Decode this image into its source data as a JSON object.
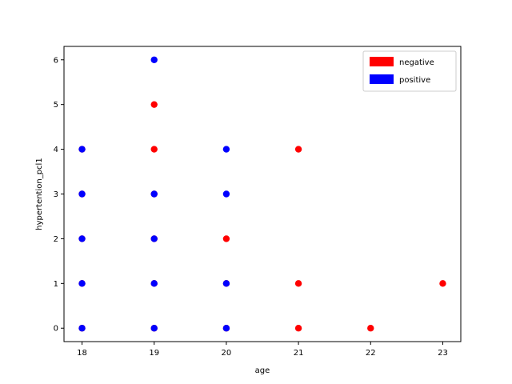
{
  "chart_data": {
    "type": "scatter",
    "xlabel": "age",
    "ylabel": "hypertention_pcl1",
    "xlim": [
      17.75,
      23.25
    ],
    "ylim": [
      -0.3,
      6.3
    ],
    "xticks": [
      18,
      19,
      20,
      21,
      22,
      23
    ],
    "yticks": [
      0,
      1,
      2,
      3,
      4,
      5,
      6
    ],
    "grid": false,
    "legend": "top-right",
    "series": [
      {
        "name": "negative",
        "color": "#ff0000",
        "points": [
          {
            "x": 18,
            "y": 0
          },
          {
            "x": 18,
            "y": 1
          },
          {
            "x": 18,
            "y": 2
          },
          {
            "x": 18,
            "y": 3
          },
          {
            "x": 18,
            "y": 4
          },
          {
            "x": 19,
            "y": 0
          },
          {
            "x": 19,
            "y": 1
          },
          {
            "x": 19,
            "y": 2
          },
          {
            "x": 19,
            "y": 3
          },
          {
            "x": 19,
            "y": 4
          },
          {
            "x": 19,
            "y": 5
          },
          {
            "x": 20,
            "y": 0
          },
          {
            "x": 20,
            "y": 1
          },
          {
            "x": 20,
            "y": 2
          },
          {
            "x": 21,
            "y": 0
          },
          {
            "x": 21,
            "y": 1
          },
          {
            "x": 21,
            "y": 4
          },
          {
            "x": 22,
            "y": 0
          },
          {
            "x": 23,
            "y": 1
          }
        ]
      },
      {
        "name": "positive",
        "color": "#0000ff",
        "points": [
          {
            "x": 18,
            "y": 0
          },
          {
            "x": 18,
            "y": 1
          },
          {
            "x": 18,
            "y": 2
          },
          {
            "x": 18,
            "y": 3
          },
          {
            "x": 18,
            "y": 4
          },
          {
            "x": 19,
            "y": 0
          },
          {
            "x": 19,
            "y": 1
          },
          {
            "x": 19,
            "y": 2
          },
          {
            "x": 19,
            "y": 3
          },
          {
            "x": 19,
            "y": 6
          },
          {
            "x": 20,
            "y": 0
          },
          {
            "x": 20,
            "y": 1
          },
          {
            "x": 20,
            "y": 3
          },
          {
            "x": 20,
            "y": 4
          }
        ]
      }
    ]
  }
}
